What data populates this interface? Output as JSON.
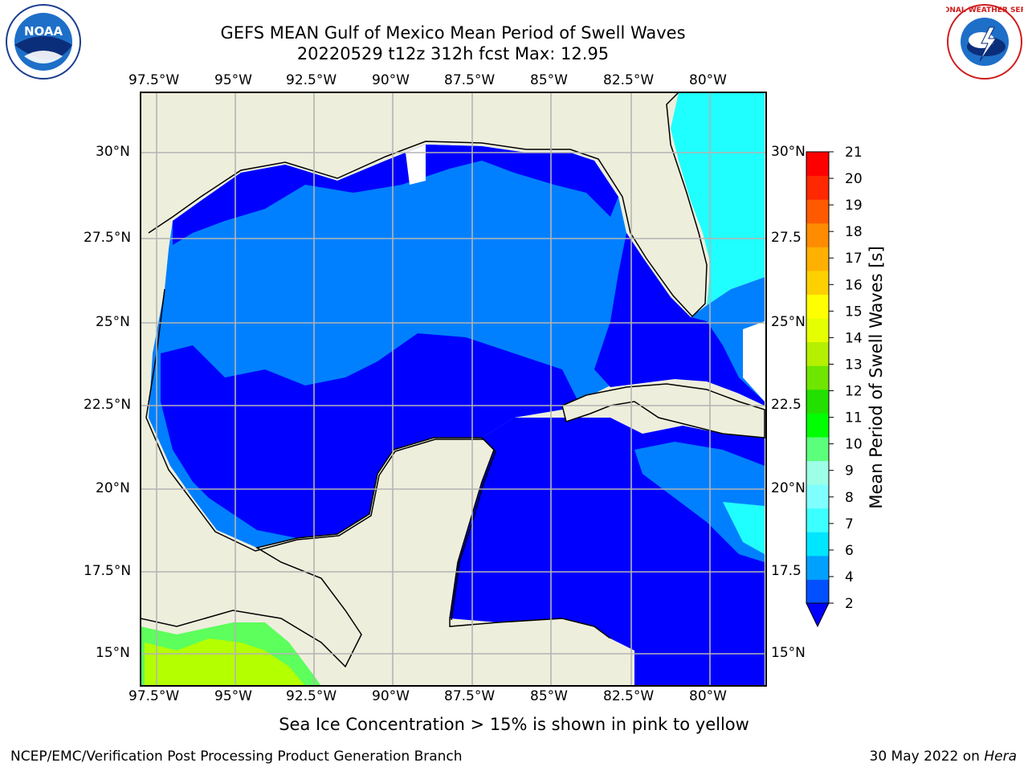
{
  "title_line1": "GEFS MEAN Gulf of Mexico Mean Period of Swell Waves",
  "title_line2": "20220529 t12z 312h fcst   Max: 12.95",
  "logos": {
    "left": "NOAA",
    "right": "NATIONAL WEATHER SERVICE"
  },
  "lon_labels": [
    "97.5°W",
    "95°W",
    "92.5°W",
    "90°W",
    "87.5°W",
    "85°W",
    "82.5°W",
    "80°W"
  ],
  "lat_labels_left": [
    "30°N",
    "27.5°N",
    "25°N",
    "22.5°N",
    "20°N",
    "17.5°N",
    "15°N"
  ],
  "lat_labels_right": [
    "30°N",
    "27.5",
    "25°N",
    "22.5",
    "20°N",
    "17.5",
    "15°N"
  ],
  "colorbar": {
    "label": "Mean Period of Swell Waves [s]",
    "ticks": [
      "2",
      "4",
      "6",
      "7",
      "8",
      "9",
      "10",
      "11",
      "12",
      "13",
      "14",
      "15",
      "16",
      "17",
      "18",
      "19",
      "20",
      "21"
    ],
    "colors": [
      "#0050ff",
      "#00a0ff",
      "#00e6ff",
      "#3cffff",
      "#7fffff",
      "#9cffe6",
      "#5cff7c",
      "#00ff00",
      "#22e000",
      "#6ee600",
      "#b4f000",
      "#e6ff00",
      "#ffff00",
      "#ffd000",
      "#ffb000",
      "#ff8c00",
      "#ff5a00",
      "#ff2800",
      "#ff0000"
    ],
    "under_color": "#0000ff"
  },
  "legend_colors": {
    "land": "#eeeedc",
    "deep_blue": "#0000ff",
    "mid_blue": "#0080ff",
    "cyan": "#20ffff",
    "green": "#5cff5c",
    "yellow_green": "#b4ff00"
  },
  "bottom_note": "Sea Ice Concentration > 15% is shown in pink to yellow",
  "footer_left": "NCEP/EMC/Verification Post Processing Product Generation Branch",
  "footer_right_prefix": "30 May 2022 on ",
  "footer_right_host": "Hera"
}
